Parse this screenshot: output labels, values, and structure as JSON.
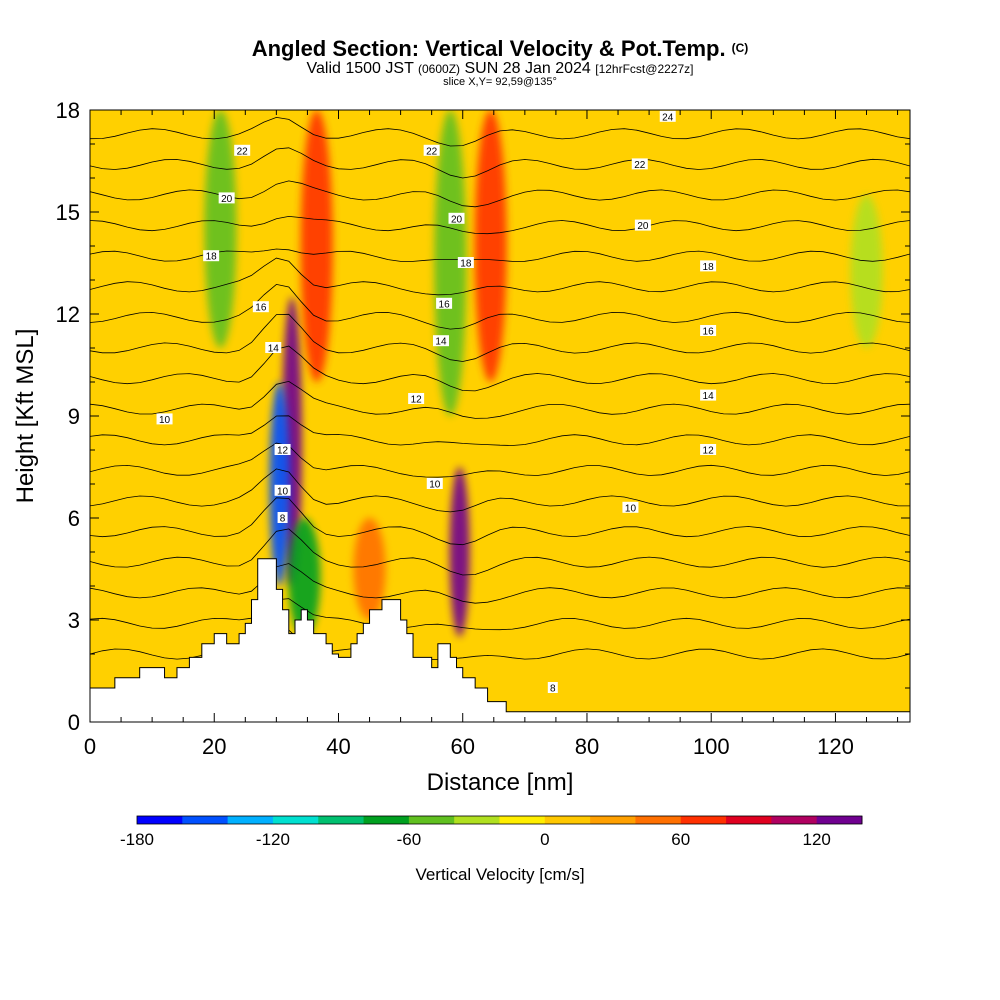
{
  "header": {
    "title": "Angled Section: Vertical Velocity & Pot.Temp.",
    "title_mark": "(C)",
    "valid_prefix": "Valid 1500 JST",
    "valid_utc": "(0600Z)",
    "valid_date": "SUN 28 Jan 2024",
    "forecast": "[12hrFcst@2227z]",
    "slice": "slice X,Y= 92,59@135°"
  },
  "chart_data": {
    "type": "heatmap",
    "xlabel": "Distance [nm]",
    "ylabel": "Height [Kft MSL]",
    "xlim": [
      0,
      132
    ],
    "ylim": [
      0,
      18
    ],
    "x_ticks": [
      "0",
      "20",
      "40",
      "60",
      "80",
      "100",
      "120"
    ],
    "x_tick_values": [
      0,
      20,
      40,
      60,
      80,
      100,
      120
    ],
    "y_ticks": [
      "0",
      "3",
      "6",
      "9",
      "12",
      "15",
      "18"
    ],
    "y_tick_values": [
      0,
      3,
      6,
      9,
      12,
      15,
      18
    ],
    "colorbar": {
      "label": "Vertical Velocity [cm/s]",
      "ticks": [
        "-180",
        "-120",
        "-60",
        "0",
        "60",
        "120"
      ],
      "tick_values": [
        -180,
        -120,
        -60,
        0,
        60,
        120
      ],
      "range": [
        -180,
        140
      ],
      "colors": [
        "#0000ff",
        "#0050ff",
        "#00b0ff",
        "#00e0d0",
        "#00c070",
        "#00a020",
        "#60c020",
        "#b0e020",
        "#ffee00",
        "#ffc800",
        "#ffa000",
        "#ff7000",
        "#ff3000",
        "#e00020",
        "#b00060",
        "#700090"
      ]
    },
    "terrain_kft": [
      [
        0,
        1.0
      ],
      [
        4,
        1.0
      ],
      [
        4,
        1.3
      ],
      [
        8,
        1.3
      ],
      [
        8,
        1.6
      ],
      [
        12,
        1.6
      ],
      [
        12,
        1.3
      ],
      [
        14,
        1.3
      ],
      [
        14,
        1.6
      ],
      [
        16,
        1.6
      ],
      [
        16,
        1.9
      ],
      [
        18,
        1.9
      ],
      [
        18,
        2.3
      ],
      [
        20,
        2.3
      ],
      [
        20,
        2.6
      ],
      [
        22,
        2.6
      ],
      [
        22,
        2.3
      ],
      [
        24,
        2.3
      ],
      [
        24,
        2.6
      ],
      [
        25,
        2.6
      ],
      [
        25,
        2.9
      ],
      [
        26,
        2.9
      ],
      [
        26,
        3.6
      ],
      [
        27,
        3.6
      ],
      [
        27,
        4.8
      ],
      [
        30,
        4.8
      ],
      [
        30,
        3.9
      ],
      [
        31,
        3.9
      ],
      [
        31,
        3.3
      ],
      [
        32,
        3.3
      ],
      [
        32,
        2.6
      ],
      [
        33,
        2.6
      ],
      [
        33,
        3.0
      ],
      [
        34,
        3.0
      ],
      [
        34,
        3.3
      ],
      [
        35,
        3.3
      ],
      [
        35,
        3.0
      ],
      [
        36,
        3.0
      ],
      [
        36,
        2.6
      ],
      [
        38,
        2.6
      ],
      [
        38,
        2.3
      ],
      [
        39,
        2.3
      ],
      [
        39,
        2.0
      ],
      [
        40,
        2.0
      ],
      [
        40,
        1.9
      ],
      [
        42,
        1.9
      ],
      [
        42,
        2.3
      ],
      [
        43,
        2.3
      ],
      [
        43,
        2.6
      ],
      [
        44,
        2.6
      ],
      [
        44,
        2.9
      ],
      [
        45,
        2.9
      ],
      [
        45,
        3.3
      ],
      [
        47,
        3.3
      ],
      [
        47,
        3.6
      ],
      [
        50,
        3.6
      ],
      [
        50,
        3.0
      ],
      [
        51,
        3.0
      ],
      [
        51,
        2.6
      ],
      [
        52,
        2.6
      ],
      [
        52,
        1.9
      ],
      [
        55,
        1.9
      ],
      [
        55,
        1.6
      ],
      [
        56,
        1.6
      ],
      [
        56,
        2.3
      ],
      [
        58,
        2.3
      ],
      [
        58,
        1.9
      ],
      [
        59,
        1.9
      ],
      [
        59,
        1.6
      ],
      [
        60,
        1.6
      ],
      [
        60,
        1.3
      ],
      [
        62,
        1.3
      ],
      [
        62,
        1.0
      ],
      [
        64,
        1.0
      ],
      [
        64,
        0.6
      ],
      [
        67,
        0.6
      ],
      [
        67,
        0.3
      ],
      [
        132,
        0.3
      ]
    ],
    "vv_features": [
      {
        "x": 32.5,
        "y_bottom": 4.0,
        "y_top": 12.5,
        "value": 120
      },
      {
        "x": 30.5,
        "y_bottom": 4.0,
        "y_top": 10.0,
        "value": -150
      },
      {
        "x": 36.5,
        "y_bottom": 10.0,
        "y_top": 18.0,
        "value": 70
      },
      {
        "x": 59.5,
        "y_bottom": 2.5,
        "y_top": 7.5,
        "value": 130
      },
      {
        "x": 58.0,
        "y_bottom": 9.0,
        "y_top": 18.0,
        "value": -60
      },
      {
        "x": 64.5,
        "y_bottom": 10.0,
        "y_top": 18.0,
        "value": 60
      },
      {
        "x": 21.0,
        "y_bottom": 11.0,
        "y_top": 18.0,
        "value": -50
      },
      {
        "x": 34.5,
        "y_bottom": 2.5,
        "y_top": 6.0,
        "value": -70
      },
      {
        "x": 45.0,
        "y_bottom": 3.0,
        "y_top": 6.0,
        "value": 50
      },
      {
        "x": 125.0,
        "y_bottom": 11.0,
        "y_top": 15.5,
        "value": -30
      }
    ],
    "contour_labels": [
      {
        "text": "22",
        "x": 24.5,
        "y": 16.8
      },
      {
        "text": "20",
        "x": 22,
        "y": 15.4
      },
      {
        "text": "18",
        "x": 19.5,
        "y": 13.7
      },
      {
        "text": "16",
        "x": 27.5,
        "y": 12.2
      },
      {
        "text": "14",
        "x": 29.5,
        "y": 11.0
      },
      {
        "text": "10",
        "x": 12,
        "y": 8.9
      },
      {
        "text": "12",
        "x": 31,
        "y": 8.0
      },
      {
        "text": "10",
        "x": 31,
        "y": 6.8
      },
      {
        "text": "8",
        "x": 31,
        "y": 6.0
      },
      {
        "text": "22",
        "x": 55,
        "y": 16.8
      },
      {
        "text": "20",
        "x": 59,
        "y": 14.8
      },
      {
        "text": "18",
        "x": 60.5,
        "y": 13.5
      },
      {
        "text": "16",
        "x": 57,
        "y": 12.3
      },
      {
        "text": "14",
        "x": 56.5,
        "y": 11.2
      },
      {
        "text": "12",
        "x": 52.5,
        "y": 9.5
      },
      {
        "text": "10",
        "x": 55.5,
        "y": 7.0
      },
      {
        "text": "24",
        "x": 93,
        "y": 17.8
      },
      {
        "text": "22",
        "x": 88.5,
        "y": 16.4
      },
      {
        "text": "20",
        "x": 89,
        "y": 14.6
      },
      {
        "text": "18",
        "x": 99.5,
        "y": 13.4
      },
      {
        "text": "16",
        "x": 99.5,
        "y": 11.5
      },
      {
        "text": "14",
        "x": 99.5,
        "y": 9.6
      },
      {
        "text": "12",
        "x": 99.5,
        "y": 8.0
      },
      {
        "text": "10",
        "x": 87,
        "y": 6.3
      },
      {
        "text": "8",
        "x": 74.5,
        "y": 1.0
      }
    ],
    "background": "#ffd000",
    "grid": false
  }
}
